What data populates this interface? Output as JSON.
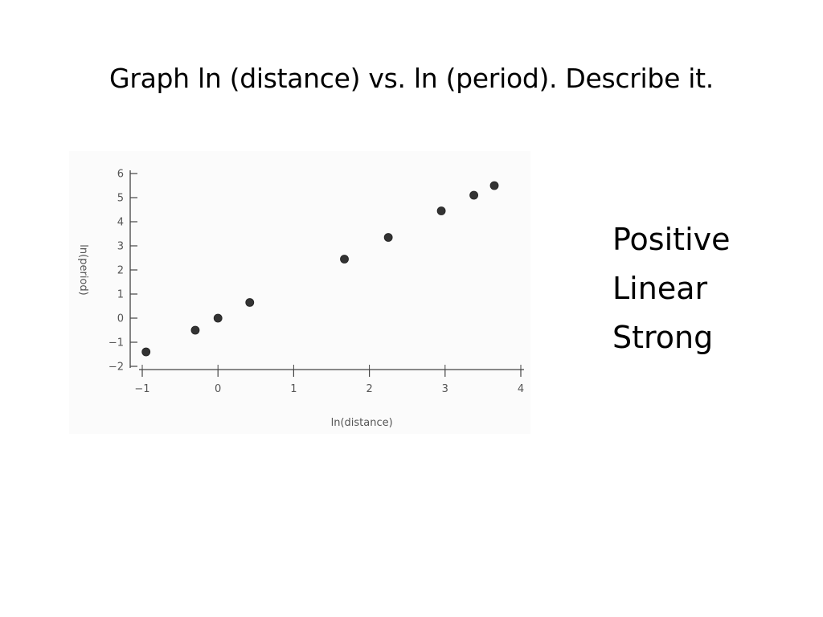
{
  "slide": {
    "title": "Graph ln (distance) vs. ln (period). Describe it.",
    "description": [
      "Positive",
      "Linear",
      "Strong"
    ]
  },
  "chart_data": {
    "type": "scatter",
    "title": "",
    "xlabel": "ln(distance)",
    "ylabel": "ln(period)",
    "xlim": [
      -1,
      4
    ],
    "ylim": [
      -2,
      6
    ],
    "x_ticks": [
      -1,
      0,
      1,
      2,
      3,
      4
    ],
    "x_tick_labels": [
      "−1",
      "0",
      "1",
      "2",
      "3",
      "4"
    ],
    "y_ticks": [
      -2,
      -1,
      0,
      1,
      2,
      3,
      4,
      5,
      6
    ],
    "y_tick_labels": [
      "−2",
      "−1",
      "0",
      "1",
      "2",
      "3",
      "4",
      "5",
      "6"
    ],
    "grid": false,
    "series": [
      {
        "points": [
          {
            "x": -0.95,
            "y": -1.4
          },
          {
            "x": -0.3,
            "y": -0.5
          },
          {
            "x": 0.0,
            "y": 0.0
          },
          {
            "x": 0.42,
            "y": 0.65
          },
          {
            "x": 1.67,
            "y": 2.45
          },
          {
            "x": 2.25,
            "y": 3.35
          },
          {
            "x": 2.95,
            "y": 4.45
          },
          {
            "x": 3.38,
            "y": 5.1
          },
          {
            "x": 3.65,
            "y": 5.5
          }
        ],
        "color": "#333333"
      }
    ]
  }
}
